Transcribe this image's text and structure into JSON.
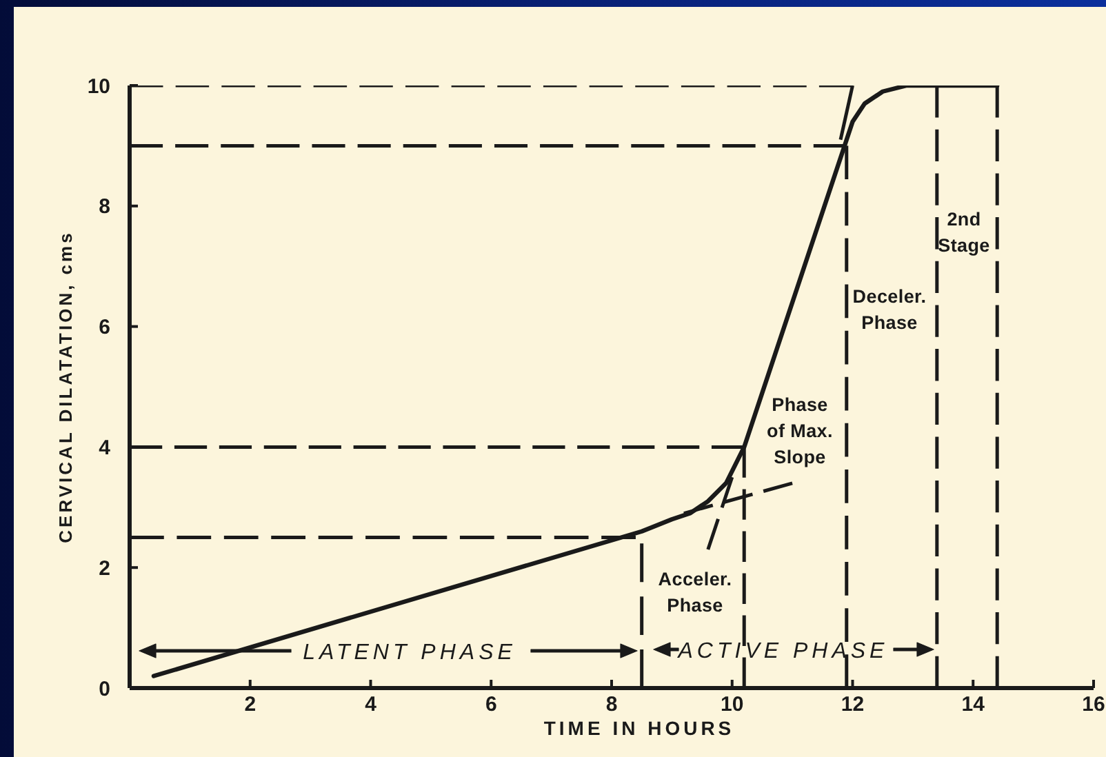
{
  "chart_data": {
    "type": "line",
    "xlabel": "TIME IN HOURS",
    "ylabel": "CERVICAL DILATATION, cms",
    "xlim": [
      0,
      16
    ],
    "xticks": [
      2,
      4,
      6,
      8,
      10,
      12,
      14,
      16
    ],
    "ylim": [
      0,
      10
    ],
    "yticks": [
      0,
      2,
      4,
      6,
      8,
      10
    ],
    "series": [
      {
        "color": "#1a1a1a",
        "x": [
          0.4,
          8.5,
          9.0,
          9.3,
          9.6,
          9.9,
          10.1,
          10.2,
          11.9,
          12.0,
          12.2,
          12.5,
          12.9,
          14.4
        ],
        "values": [
          0.2,
          2.6,
          2.8,
          2.9,
          3.1,
          3.4,
          3.8,
          4.0,
          9.1,
          9.4,
          9.7,
          9.9,
          10.0,
          10.0
        ]
      },
      {
        "color": "#1a1a1a",
        "line_style": "dashed",
        "x": [
          0,
          12.0
        ],
        "values": [
          10,
          10
        ]
      },
      {
        "color": "#1a1a1a",
        "line_style": "dashed",
        "x": [
          0,
          11.9
        ],
        "values": [
          9,
          9
        ]
      },
      {
        "color": "#1a1a1a",
        "line_style": "dashed",
        "x": [
          0,
          10.2
        ],
        "values": [
          4,
          4
        ]
      },
      {
        "color": "#1a1a1a",
        "line_style": "dashed",
        "x": [
          0,
          8.4
        ],
        "values": [
          2.5,
          2.5
        ]
      },
      {
        "color": "#1a1a1a",
        "line_style": "dashed",
        "x": [
          8.5,
          8.5
        ],
        "values": [
          0,
          2.4
        ]
      },
      {
        "color": "#1a1a1a",
        "line_style": "dashed",
        "x": [
          10.2,
          10.2
        ],
        "values": [
          0,
          4
        ]
      },
      {
        "color": "#1a1a1a",
        "line_style": "dashed",
        "x": [
          11.9,
          11.9
        ],
        "values": [
          0,
          9
        ]
      },
      {
        "color": "#1a1a1a",
        "line_style": "dashed",
        "x": [
          13.4,
          13.4
        ],
        "values": [
          0,
          10
        ]
      },
      {
        "color": "#1a1a1a",
        "line_style": "dashed",
        "x": [
          14.4,
          14.4
        ],
        "values": [
          0,
          10
        ]
      },
      {
        "color": "#1a1a1a",
        "line_style": "dashed",
        "x": [
          9.2,
          11.0
        ],
        "values": [
          2.9,
          3.4
        ]
      },
      {
        "color": "#1a1a1a",
        "line_style": "dashed",
        "x": [
          9.6,
          10.0
        ],
        "values": [
          2.3,
          3.5
        ]
      },
      {
        "color": "#1a1a1a",
        "line_style": "dashed",
        "x": [
          11.8,
          12.0
        ],
        "values": [
          9.1,
          10.0
        ]
      }
    ],
    "annotations": [
      "LATENT PHASE",
      "ACTIVE PHASE",
      "Acceler.\nPhase",
      "Phase\nof Max.\nSlope",
      "Deceler.\nPhase",
      "2nd\nStage"
    ]
  }
}
